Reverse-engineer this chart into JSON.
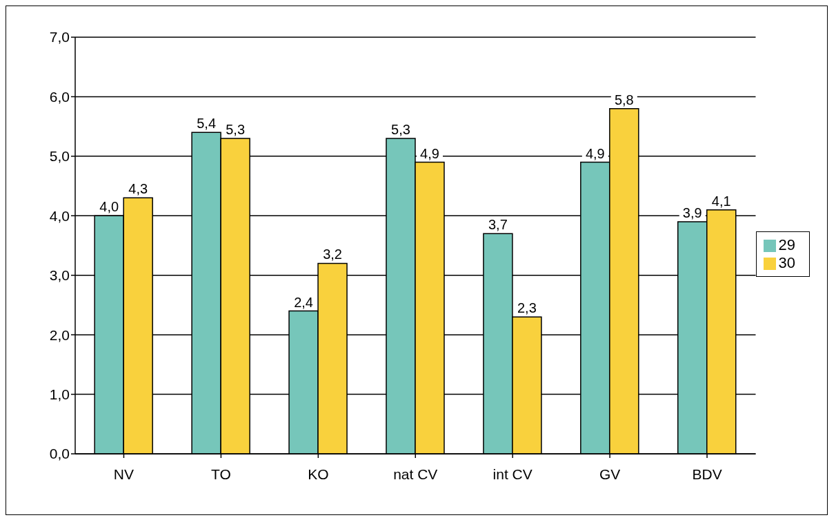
{
  "chart_data": {
    "type": "bar",
    "categories": [
      "NV",
      "TO",
      "KO",
      "nat CV",
      "int CV",
      "GV",
      "BDV"
    ],
    "series": [
      {
        "name": "29",
        "color": "#76c6ba",
        "values": [
          4.0,
          5.4,
          2.4,
          5.3,
          3.7,
          4.9,
          3.9
        ],
        "value_labels": [
          "4,0",
          "5,4",
          "2,4",
          "5,3",
          "3,7",
          "4,9",
          "3,9"
        ]
      },
      {
        "name": "30",
        "color": "#f9d13d",
        "values": [
          4.3,
          5.3,
          3.2,
          4.9,
          2.3,
          5.8,
          4.1
        ],
        "value_labels": [
          "4,3",
          "5,3",
          "3,2",
          "4,9",
          "2,3",
          "5,8",
          "4,1"
        ]
      }
    ],
    "ylim": [
      0,
      7
    ],
    "yticks": [
      {
        "value": 0,
        "label": "0,0"
      },
      {
        "value": 1,
        "label": "1,0"
      },
      {
        "value": 2,
        "label": "2,0"
      },
      {
        "value": 3,
        "label": "3,0"
      },
      {
        "value": 4,
        "label": "4,0"
      },
      {
        "value": 5,
        "label": "5,0"
      },
      {
        "value": 6,
        "label": "6,0"
      },
      {
        "value": 7,
        "label": "7,0"
      }
    ],
    "grid": "y",
    "legend": "right"
  }
}
